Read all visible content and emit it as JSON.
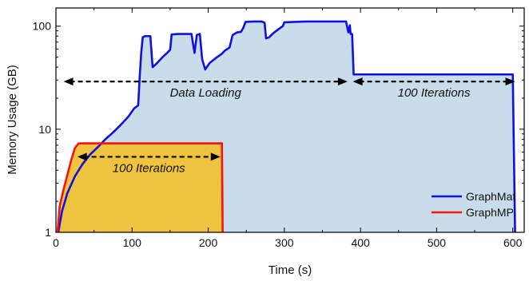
{
  "chart_data": {
    "type": "area",
    "title": "",
    "xlabel": "Time (s)",
    "ylabel": "Memory Usage (GB)",
    "xlim": [
      0,
      615
    ],
    "ylim": [
      1,
      150
    ],
    "yscale": "log",
    "grid": false,
    "legend_position": "bottom-right",
    "x_ticks": [
      0,
      100,
      200,
      300,
      400,
      500,
      600
    ],
    "y_ticks": [
      1,
      10,
      100
    ],
    "y_tick_labels": [
      "1",
      "10",
      "100"
    ],
    "series": [
      {
        "name": "GraphMat",
        "color": "#1010e0",
        "fill": "#c9dcea",
        "points": [
          [
            3,
            1.0
          ],
          [
            8,
            1.6
          ],
          [
            15,
            2.4
          ],
          [
            25,
            3.5
          ],
          [
            35,
            4.6
          ],
          [
            45,
            5.7
          ],
          [
            55,
            6.7
          ],
          [
            65,
            8.0
          ],
          [
            75,
            9.3
          ],
          [
            85,
            11.0
          ],
          [
            95,
            13.2
          ],
          [
            103,
            16.0
          ],
          [
            108,
            17.0
          ],
          [
            110,
            32.0
          ],
          [
            112,
            55.0
          ],
          [
            114,
            78.0
          ],
          [
            117,
            80.0
          ],
          [
            124,
            80.0
          ],
          [
            127,
            40.0
          ],
          [
            133,
            44.0
          ],
          [
            140,
            50.0
          ],
          [
            146,
            55.0
          ],
          [
            150,
            59.0
          ],
          [
            152,
            83.0
          ],
          [
            160,
            84.0
          ],
          [
            170,
            84.0
          ],
          [
            178,
            84.0
          ],
          [
            182,
            55.0
          ],
          [
            185,
            82.0
          ],
          [
            189,
            84.0
          ],
          [
            192,
            48.0
          ],
          [
            196,
            38.0
          ],
          [
            202,
            44.0
          ],
          [
            210,
            49.0
          ],
          [
            218,
            54.0
          ],
          [
            222,
            58.0
          ],
          [
            228,
            62.0
          ],
          [
            232,
            82.0
          ],
          [
            238,
            87.0
          ],
          [
            243,
            88.0
          ],
          [
            246,
            96.0
          ],
          [
            249,
            110.0
          ],
          [
            260,
            111.0
          ],
          [
            270,
            111.0
          ],
          [
            274,
            108.0
          ],
          [
            276,
            76.0
          ],
          [
            280,
            78.0
          ],
          [
            286,
            86.0
          ],
          [
            292,
            93.0
          ],
          [
            298,
            100.0
          ],
          [
            300,
            109.0
          ],
          [
            330,
            111.0
          ],
          [
            360,
            111.0
          ],
          [
            381,
            111.0
          ],
          [
            384,
            87.0
          ],
          [
            386,
            102.0
          ],
          [
            387,
            84.0
          ],
          [
            389,
            84.0
          ],
          [
            391,
            34.0
          ],
          [
            500,
            34.0
          ],
          [
            598,
            34.0
          ],
          [
            600,
            34.0
          ],
          [
            603,
            1.0
          ]
        ]
      },
      {
        "name": "GraphMP",
        "color": "#ff1010",
        "fill": "#f1c030",
        "points": [
          [
            2,
            1.0
          ],
          [
            5,
            1.8
          ],
          [
            10,
            2.6
          ],
          [
            15,
            3.6
          ],
          [
            20,
            5.0
          ],
          [
            25,
            6.6
          ],
          [
            30,
            7.3
          ],
          [
            40,
            7.3
          ],
          [
            80,
            7.3
          ],
          [
            120,
            7.3
          ],
          [
            160,
            7.3
          ],
          [
            200,
            7.3
          ],
          [
            216,
            7.3
          ],
          [
            218,
            7.3
          ],
          [
            219,
            1.0
          ]
        ]
      }
    ],
    "annotations": [
      {
        "text": "Data Loading",
        "x_start": 10,
        "x_end": 383,
        "y": 29
      },
      {
        "text": "100 Iterations",
        "x_start": 390,
        "x_end": 603,
        "y": 29
      },
      {
        "text": "100 Iterations",
        "x_start": 28,
        "x_end": 216,
        "y": 5.4
      }
    ]
  }
}
